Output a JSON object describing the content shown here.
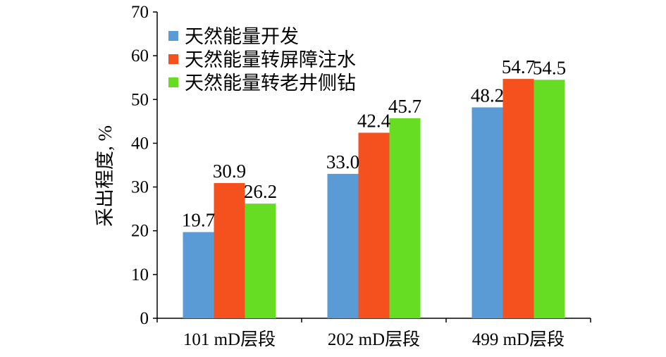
{
  "chart_data": {
    "type": "bar",
    "title": "",
    "xlabel": "",
    "ylabel": "采出程度, %",
    "ylim": [
      0,
      70
    ],
    "yticks": [
      0,
      10,
      20,
      30,
      40,
      50,
      60,
      70
    ],
    "grid": false,
    "legend_position": "top-left",
    "categories": [
      "101 mD层段",
      "202 mD层段",
      "499 mD层段"
    ],
    "series": [
      {
        "name": "天然能量开发",
        "color": "#5b9bd5",
        "values": [
          19.7,
          33.0,
          48.2
        ],
        "labels": [
          "19.7",
          "33.0",
          "48.2"
        ]
      },
      {
        "name": "天然能量转屏障注水",
        "color": "#f4511e",
        "values": [
          30.9,
          42.4,
          54.7
        ],
        "labels": [
          "30.9",
          "42.4",
          "54.7"
        ]
      },
      {
        "name": "天然能量转老井侧钻",
        "color": "#66dd22",
        "values": [
          26.2,
          45.7,
          54.5
        ],
        "labels": [
          "26.2",
          "45.7",
          "54.5"
        ]
      }
    ]
  }
}
